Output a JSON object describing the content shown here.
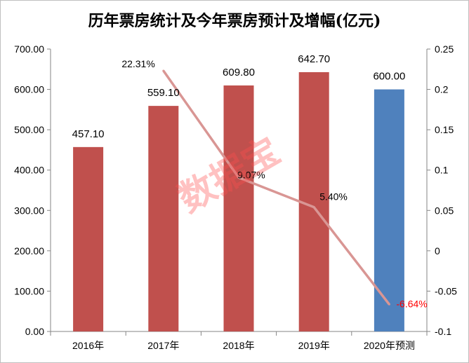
{
  "title": "历年票房统计及今年票房预计及增幅(亿元)",
  "watermark": "数据宝",
  "chart_data": {
    "type": "bar",
    "categories": [
      "2016年",
      "2017年",
      "2018年",
      "2019年",
      "2020年预测"
    ],
    "series": [
      {
        "values": [
          457.1,
          559.1,
          609.8,
          642.7,
          600.0
        ],
        "labels": [
          "457.10",
          "559.10",
          "609.80",
          "642.70",
          "600.00"
        ],
        "colors": [
          "#c0504d",
          "#c0504d",
          "#c0504d",
          "#c0504d",
          "#4f81bd"
        ],
        "axis": "left"
      },
      {
        "type": "line",
        "values": [
          null,
          0.2231,
          0.0907,
          0.054,
          -0.0664
        ],
        "labels": [
          "",
          "22.31%",
          "9.07%",
          "5.40%",
          "-6.64%"
        ],
        "label_colors": [
          "#000000",
          "#000000",
          "#000000",
          "#000000",
          "#ff0000"
        ],
        "color": "#d99694",
        "axis": "right"
      }
    ],
    "yleft": {
      "lim": [
        0,
        700
      ],
      "ticks": [
        0,
        100,
        200,
        300,
        400,
        500,
        600,
        700
      ],
      "tick_labels": [
        "0.00",
        "100.00",
        "200.00",
        "300.00",
        "400.00",
        "500.00",
        "600.00",
        "700.00"
      ]
    },
    "yright": {
      "lim": [
        -0.1,
        0.25
      ],
      "ticks": [
        -0.1,
        -0.05,
        0,
        0.05,
        0.1,
        0.15,
        0.2,
        0.25
      ],
      "tick_labels": [
        "-0.1",
        "-0.05",
        "0",
        "0.05",
        "0.1",
        "0.15",
        "0.2",
        "0.25"
      ]
    },
    "grid": false,
    "legend": "none"
  }
}
